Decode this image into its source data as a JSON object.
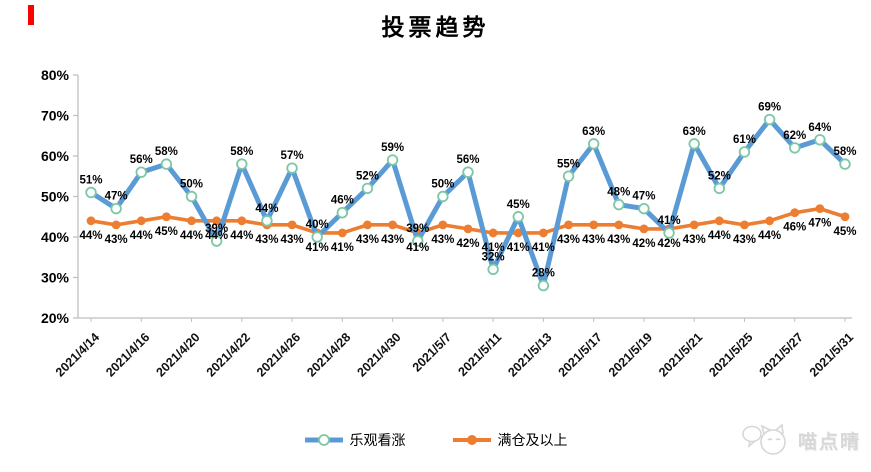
{
  "page": {
    "red_marker_color": "#ff0000",
    "watermark": {
      "text": "喵点晴",
      "icon": "cat-with-speech-bubble-icon"
    }
  },
  "chart_data": {
    "type": "line",
    "title": "投票趋势",
    "xlabel": "",
    "ylabel": "",
    "ylim": [
      20,
      80
    ],
    "y_ticks": [
      80,
      70,
      60,
      50,
      40,
      30,
      20
    ],
    "value_suffix": "%",
    "grid": false,
    "legend_position": "bottom",
    "data_labels": true,
    "x_tick_labels": [
      "2021/4/14",
      "2021/4/16",
      "2021/4/20",
      "2021/4/22",
      "2021/4/26",
      "2021/4/28",
      "2021/4/30",
      "2021/5/7",
      "2021/5/11",
      "2021/5/13",
      "2021/5/17",
      "2021/5/19",
      "2021/5/21",
      "2021/5/25",
      "2021/5/27",
      "2021/5/31"
    ],
    "x_tick_every_n_points": 2,
    "series": [
      {
        "name": "满仓及以上",
        "color": "#ED7D31",
        "marker": "solid-circle",
        "values": [
          44,
          43,
          44,
          45,
          44,
          44,
          44,
          43,
          43,
          41,
          41,
          43,
          43,
          41,
          43,
          42,
          41,
          41,
          41,
          43,
          43,
          43,
          42,
          42,
          43,
          44,
          43,
          44,
          46,
          47,
          45
        ]
      },
      {
        "name": "乐观看涨",
        "color": "#5B9BD5",
        "marker": "hollow-circle",
        "marker_ring_color": "#7CC8A4",
        "values": [
          51,
          47,
          56,
          58,
          50,
          39,
          58,
          44,
          57,
          40,
          46,
          52,
          59,
          39,
          50,
          56,
          32,
          45,
          28,
          55,
          63,
          48,
          47,
          41,
          63,
          52,
          61,
          69,
          62,
          64,
          58
        ]
      }
    ],
    "axis_color": "#BFBFBF",
    "label_color": "#000000"
  }
}
